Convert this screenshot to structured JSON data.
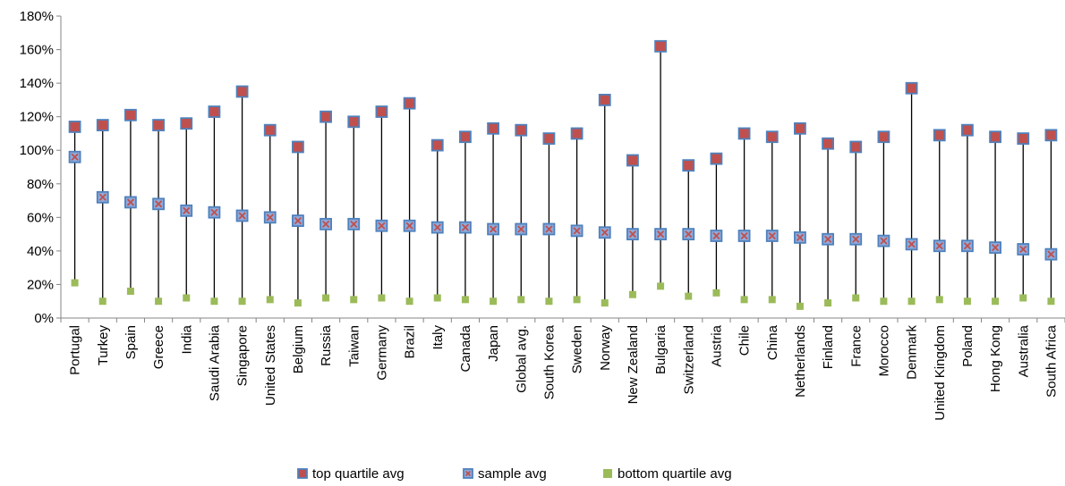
{
  "chart_data": {
    "type": "scatter",
    "ylim": [
      0,
      180
    ],
    "yticks": [
      0,
      20,
      40,
      60,
      80,
      100,
      120,
      140,
      160,
      180
    ],
    "ytick_suffix": "%",
    "grid": false,
    "legend_position": "bottom",
    "categories": [
      "Portugal",
      "Turkey",
      "Spain",
      "Greece",
      "India",
      "Saudi Arabia",
      "Singapore",
      "United States",
      "Belgium",
      "Russia",
      "Taiwan",
      "Germany",
      "Brazil",
      "Italy",
      "Canada",
      "Japan",
      "Global avg.",
      "South Korea",
      "Sweden",
      "Norway",
      "New Zealand",
      "Bulgaria",
      "Switzerland",
      "Austria",
      "Chile",
      "China",
      "Netherlands",
      "Finland",
      "France",
      "Morocco",
      "Denmark",
      "United Kingdom",
      "Poland",
      "Hong Kong",
      "Australia",
      "South Africa"
    ],
    "series": [
      {
        "name": "top quartile avg",
        "color": "#c0504d",
        "border": "#4f81bd",
        "values": [
          114,
          115,
          121,
          115,
          116,
          123,
          135,
          112,
          102,
          120,
          117,
          123,
          128,
          103,
          108,
          113,
          112,
          107,
          110,
          130,
          94,
          162,
          91,
          95,
          110,
          108,
          113,
          104,
          102,
          108,
          137,
          109,
          112,
          108,
          107,
          109
        ]
      },
      {
        "name": "sample avg",
        "color": "#4f81bd",
        "border": "#4f81bd",
        "values": [
          96,
          72,
          69,
          68,
          64,
          63,
          61,
          60,
          58,
          56,
          56,
          55,
          55,
          54,
          54,
          53,
          53,
          53,
          52,
          51,
          50,
          50,
          50,
          49,
          49,
          49,
          48,
          47,
          47,
          46,
          44,
          43,
          43,
          42,
          41,
          38
        ]
      },
      {
        "name": "bottom quartile avg",
        "color": "#9bbb59",
        "border": "#9bbb59",
        "values": [
          21,
          10,
          16,
          10,
          12,
          10,
          10,
          11,
          9,
          12,
          11,
          12,
          10,
          12,
          11,
          10,
          11,
          10,
          11,
          9,
          14,
          19,
          13,
          15,
          11,
          11,
          7,
          9,
          12,
          10,
          10,
          11,
          10,
          10,
          12,
          10
        ]
      }
    ]
  }
}
